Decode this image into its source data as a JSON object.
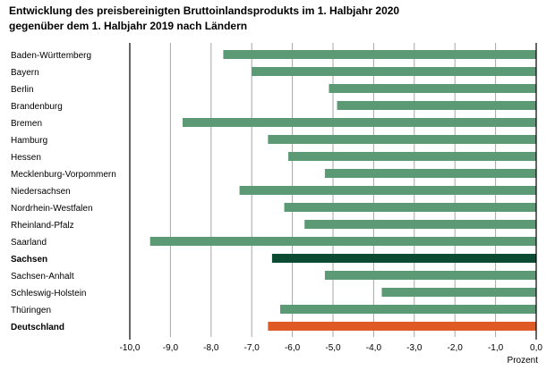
{
  "chart_data": {
    "type": "bar",
    "orientation": "horizontal",
    "title": "Entwicklung des preisbereinigten Bruttoinlandsprodukts im 1. Halbjahr 2020",
    "subtitle": "gegenüber dem 1. Halbjahr 2019 nach Ländern",
    "xlabel": "Prozent",
    "ylabel": "",
    "xlim": [
      -10,
      0
    ],
    "xticks": [
      -10,
      -9,
      -8,
      -7,
      -6,
      -5,
      -4,
      -3,
      -2,
      -1,
      0
    ],
    "xtick_labels": [
      "-10,0",
      "-9,0",
      "-8,0",
      "-7,0",
      "-6,0",
      "-5,0",
      "-4,0",
      "-3,0",
      "-2,0",
      "-1,0",
      "0,0"
    ],
    "grid": "vertical",
    "legend": "none",
    "colors": {
      "default": "#5b9a74",
      "highlight": "#0b4a33",
      "total": "#e05a26",
      "grid": "#a6a6a6",
      "axis": "#000000"
    },
    "categories": [
      "Baden-Württemberg",
      "Bayern",
      "Berlin",
      "Brandenburg",
      "Bremen",
      "Hamburg",
      "Hessen",
      "Mecklenburg-Vorpommern",
      "Niedersachsen",
      "Nordrhein-Westfalen",
      "Rheinland-Pfalz",
      "Saarland",
      "Sachsen",
      "Sachsen-Anhalt",
      "Schleswig-Holstein",
      "Thüringen",
      "Deutschland"
    ],
    "values": [
      -7.7,
      -7.0,
      -5.1,
      -4.9,
      -8.7,
      -6.6,
      -6.1,
      -5.2,
      -7.3,
      -6.2,
      -5.7,
      -9.5,
      -6.5,
      -5.2,
      -3.8,
      -6.3,
      -6.6
    ],
    "bar_styles": [
      "default",
      "default",
      "default",
      "default",
      "default",
      "default",
      "default",
      "default",
      "default",
      "default",
      "default",
      "default",
      "highlight",
      "default",
      "default",
      "default",
      "total"
    ],
    "bold_labels": [
      "Sachsen",
      "Deutschland"
    ]
  }
}
